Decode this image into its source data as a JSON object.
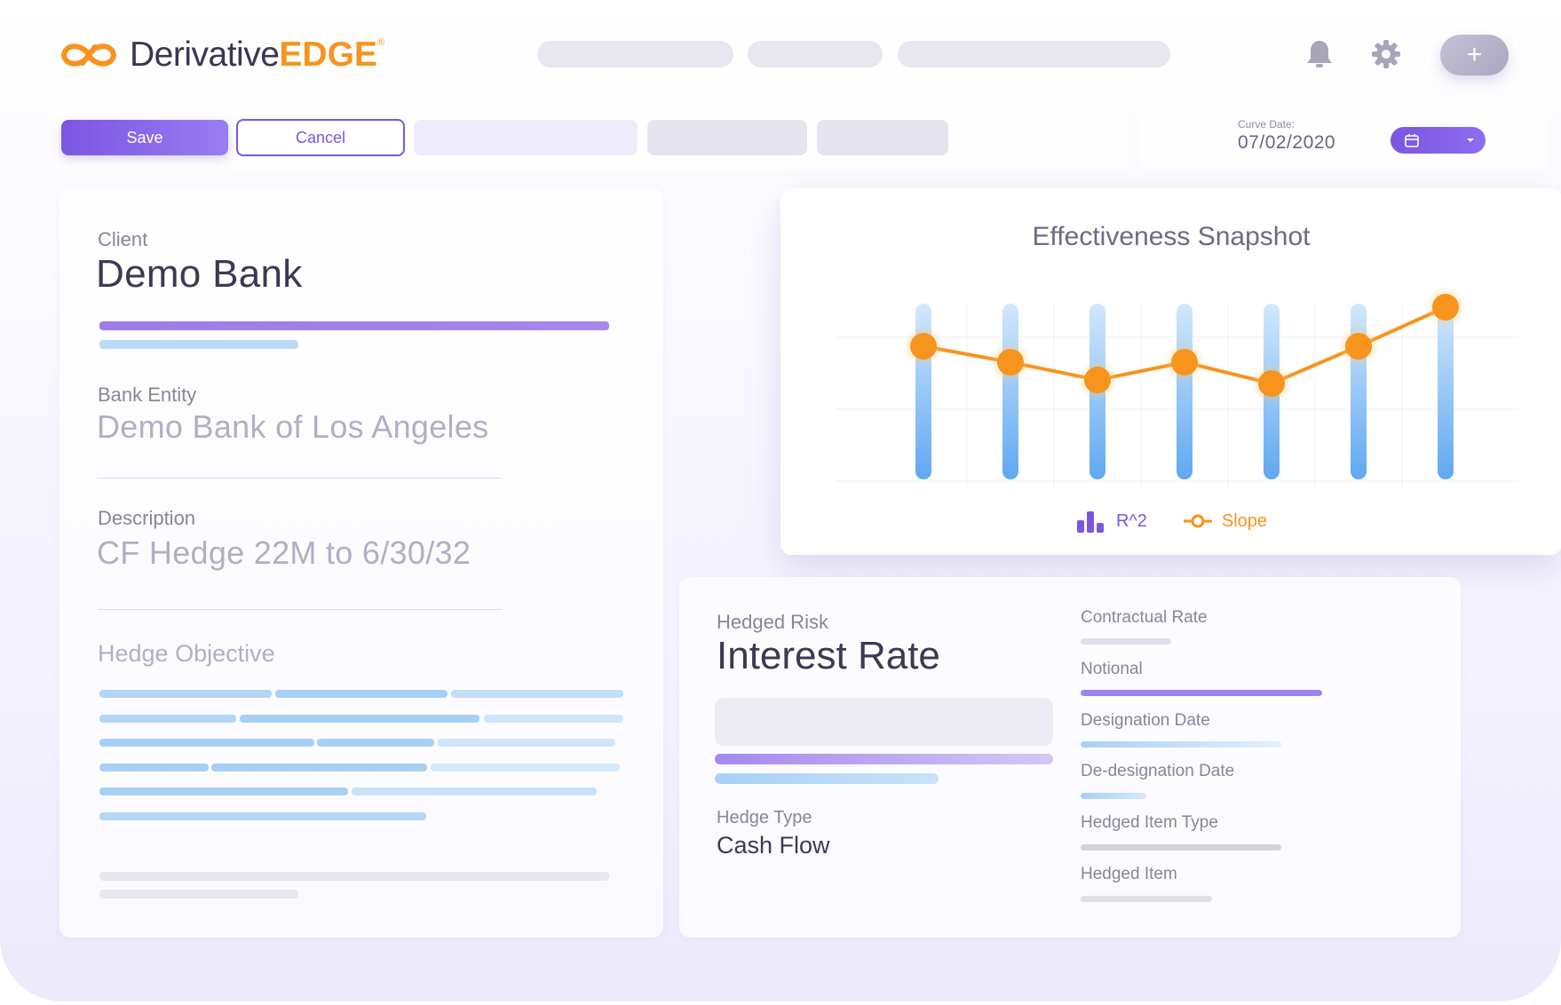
{
  "app": {
    "logo_name": "Derivative",
    "logo_accent": "EDGE",
    "logo_mark": "®",
    "brand_color": "#7b56e2",
    "accent_color": "#f7931e"
  },
  "header": {
    "notification_icon": "bell-icon",
    "settings_icon": "gear-icon",
    "add_label": "+"
  },
  "toolbar": {
    "save_label": "Save",
    "cancel_label": "Cancel"
  },
  "curve_date": {
    "label": "Curve Date:",
    "value": "07/02/2020",
    "calendar_icon": "calendar-icon",
    "dropdown_icon": "chevron-down-icon"
  },
  "client": {
    "label": "Client",
    "value": "Demo Bank"
  },
  "bank_entity": {
    "label": "Bank Entity",
    "value": "Demo Bank of Los Angeles"
  },
  "description": {
    "label": "Description",
    "value": "CF Hedge 22M to 6/30/32"
  },
  "hedge_objective": {
    "label": "Hedge Objective"
  },
  "hedged_risk": {
    "label": "Hedged Risk",
    "value": "Interest Rate"
  },
  "hedge_type": {
    "label": "Hedge Type",
    "value": "Cash Flow"
  },
  "details": {
    "labels": [
      "Contractual Rate",
      "Notional",
      "Designation Date",
      "De-designation Date",
      "Hedged Item Type",
      "Hedged Item"
    ]
  },
  "chart_data": {
    "type": "bar",
    "title": "Effectiveness Snapshot",
    "categories": [
      "",
      "",
      "",
      "",
      "",
      "",
      ""
    ],
    "series": [
      {
        "name": "R^2",
        "kind": "bar",
        "color": "#6aaef5",
        "values": [
          1,
          1,
          1,
          1,
          1,
          1,
          1
        ]
      },
      {
        "name": "Slope",
        "kind": "line",
        "color": "#f7941d",
        "values": [
          0.76,
          0.67,
          0.57,
          0.67,
          0.55,
          0.76,
          0.98
        ]
      }
    ],
    "ylim": [
      0,
      1
    ],
    "grid": true,
    "legend_position": "bottom"
  }
}
